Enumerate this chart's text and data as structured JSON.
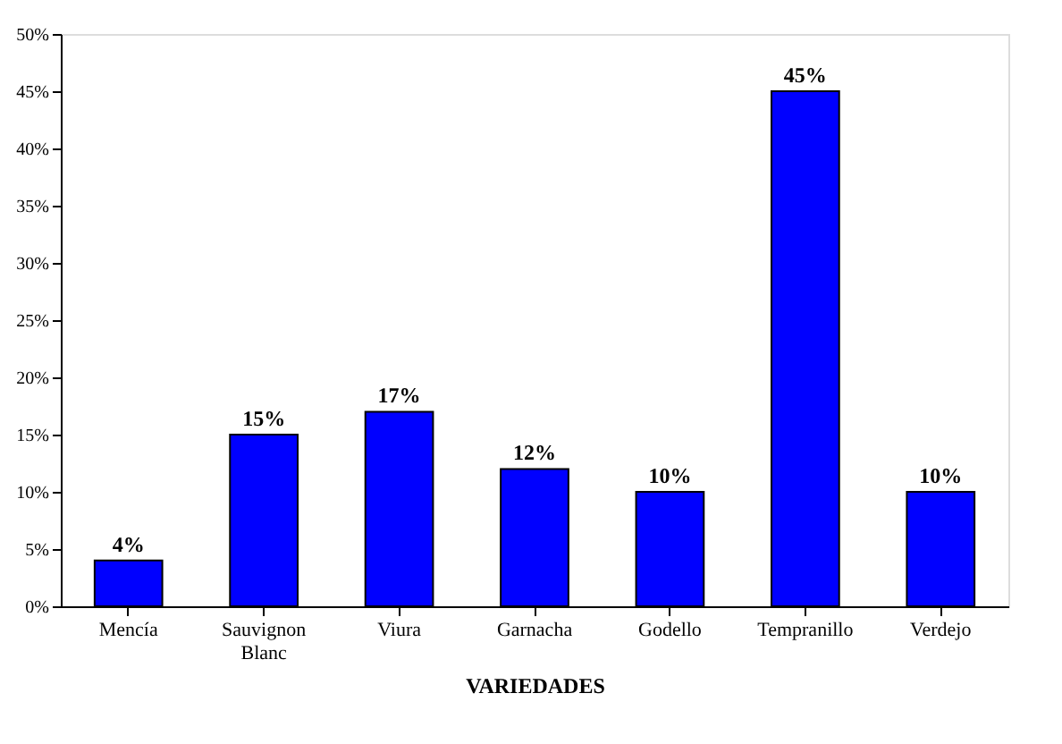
{
  "chart_data": {
    "type": "bar",
    "xlabel": "VARIEDADES",
    "categories": [
      "Mencía",
      "Sauvignon Blanc",
      "Viura",
      "Garnacha",
      "Godello",
      "Tempranillo",
      "Verdejo"
    ],
    "values": [
      4,
      15,
      17,
      12,
      10,
      45,
      10
    ],
    "color": "#0000ff",
    "ylim": [
      0,
      50
    ],
    "yticks": [
      {
        "value": 0,
        "label": "0%"
      },
      {
        "value": 5,
        "label": "5%"
      },
      {
        "value": 10,
        "label": "10%"
      },
      {
        "value": 15,
        "label": "15%"
      },
      {
        "value": 20,
        "label": "20%"
      },
      {
        "value": 25,
        "label": "25%"
      },
      {
        "value": 30,
        "label": "30%"
      },
      {
        "value": 35,
        "label": "35%"
      },
      {
        "value": 40,
        "label": "40%"
      },
      {
        "value": 45,
        "label": "45%"
      },
      {
        "value": 50,
        "label": "50%"
      }
    ],
    "value_labels": [
      "4%",
      "15%",
      "17%",
      "12%",
      "10%",
      "45%",
      "10%"
    ],
    "grid": false
  }
}
